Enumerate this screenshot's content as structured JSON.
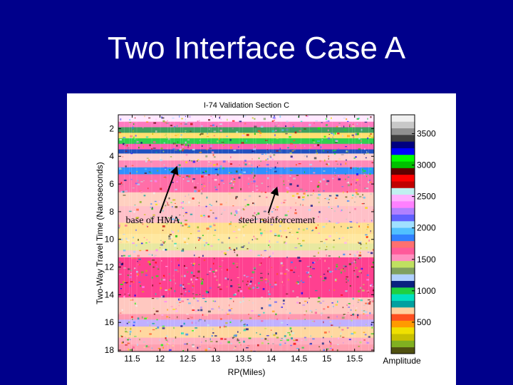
{
  "slide": {
    "title": "Two Interface Case A"
  },
  "colors": {
    "background": "#00008b",
    "title": "#ffffff",
    "figure_bg": "#ffffff"
  },
  "chart_data": {
    "type": "heatmap",
    "title": "I-74 Validation Section C",
    "xlabel": "RP(Miles)",
    "ylabel": "Two-Way Travel Time (Nanoseconds)",
    "xlim": [
      11.25,
      15.85
    ],
    "ylim": [
      1.0,
      18.1
    ],
    "y_inverted": true,
    "x_ticks": [
      11.5,
      12,
      12.5,
      13,
      13.5,
      14,
      14.5,
      15,
      15.5
    ],
    "x_tick_labels": [
      "11.5",
      "12",
      "12.5",
      "13",
      "13.5",
      "14",
      "14.5",
      "15",
      "15.5"
    ],
    "y_ticks": [
      2,
      4,
      6,
      8,
      10,
      12,
      14,
      16,
      18
    ],
    "y_tick_labels": [
      "2",
      "4",
      "6",
      "8",
      "10",
      "12",
      "14",
      "16",
      "18"
    ],
    "colorbar": {
      "label": "Amplitude",
      "range": [
        0,
        3800
      ],
      "ticks": [
        500,
        1000,
        1500,
        2000,
        2500,
        3000,
        3500
      ],
      "tick_labels": [
        "500",
        "1000",
        "1500",
        "2000",
        "2500",
        "3000",
        "3500"
      ],
      "colors": [
        "#505010",
        "#80b020",
        "#c8c000",
        "#f0e000",
        "#ff9a00",
        "#ff5020",
        "#ffd0a0",
        "#00a0a0",
        "#00e0c0",
        "#20d040",
        "#0a2080",
        "#b0d0ff",
        "#80a060",
        "#c0e060",
        "#ff90c0",
        "#ff5a9a",
        "#ff7070",
        "#3080ff",
        "#50c0ff",
        "#a0e0ff",
        "#6060ff",
        "#b080ff",
        "#ff80ff",
        "#ffb0ff",
        "#c0f0f0",
        "#c00000",
        "#ff0000",
        "#600000",
        "#00c000",
        "#00ff00",
        "#0000ff",
        "#000080",
        "#404040",
        "#909090",
        "#c8c8c8",
        "#f0f0f0"
      ]
    },
    "bands": [
      {
        "from": 1.0,
        "to": 1.5,
        "color": "#ffe8ff"
      },
      {
        "from": 1.5,
        "to": 1.9,
        "color": "#ff7ac0"
      },
      {
        "from": 1.9,
        "to": 2.3,
        "color": "#40a060"
      },
      {
        "from": 2.3,
        "to": 2.7,
        "color": "#ffe070"
      },
      {
        "from": 2.7,
        "to": 3.1,
        "color": "#30d050"
      },
      {
        "from": 3.1,
        "to": 3.5,
        "color": "#ff60b0"
      },
      {
        "from": 3.5,
        "to": 3.8,
        "color": "#2050c0"
      },
      {
        "from": 3.8,
        "to": 4.3,
        "color": "#ffd2d2"
      },
      {
        "from": 4.3,
        "to": 4.8,
        "color": "#ff8ab8"
      },
      {
        "from": 4.8,
        "to": 5.3,
        "color": "#3090ff"
      },
      {
        "from": 5.3,
        "to": 6.6,
        "color": "#ff6ea8"
      },
      {
        "from": 6.6,
        "to": 7.6,
        "color": "#ffd0c0"
      },
      {
        "from": 7.6,
        "to": 8.8,
        "color": "#ffc0c8"
      },
      {
        "from": 8.8,
        "to": 9.6,
        "color": "#ffe090"
      },
      {
        "from": 9.6,
        "to": 10.3,
        "color": "#ffe8a0"
      },
      {
        "from": 10.3,
        "to": 10.8,
        "color": "#e8e8a0"
      },
      {
        "from": 10.8,
        "to": 11.3,
        "color": "#ffc8c8"
      },
      {
        "from": 11.3,
        "to": 14.2,
        "color": "#ff4090"
      },
      {
        "from": 14.2,
        "to": 15.4,
        "color": "#ffc8c0"
      },
      {
        "from": 15.4,
        "to": 15.8,
        "color": "#ff9ab0"
      },
      {
        "from": 15.8,
        "to": 16.3,
        "color": "#c0b0ff"
      },
      {
        "from": 16.3,
        "to": 17.1,
        "color": "#ffd8a0"
      },
      {
        "from": 17.1,
        "to": 17.6,
        "color": "#ffb0c0"
      },
      {
        "from": 17.6,
        "to": 18.1,
        "color": "#ffa0b0"
      }
    ],
    "annotations": [
      {
        "text": "base of HMA",
        "arrow_from": [
          12.0,
          8.1
        ],
        "arrow_to": [
          12.3,
          4.8
        ]
      },
      {
        "text": "steel reinforcement",
        "arrow_from": [
          13.95,
          8.1
        ],
        "arrow_to": [
          14.1,
          6.3
        ]
      }
    ]
  }
}
